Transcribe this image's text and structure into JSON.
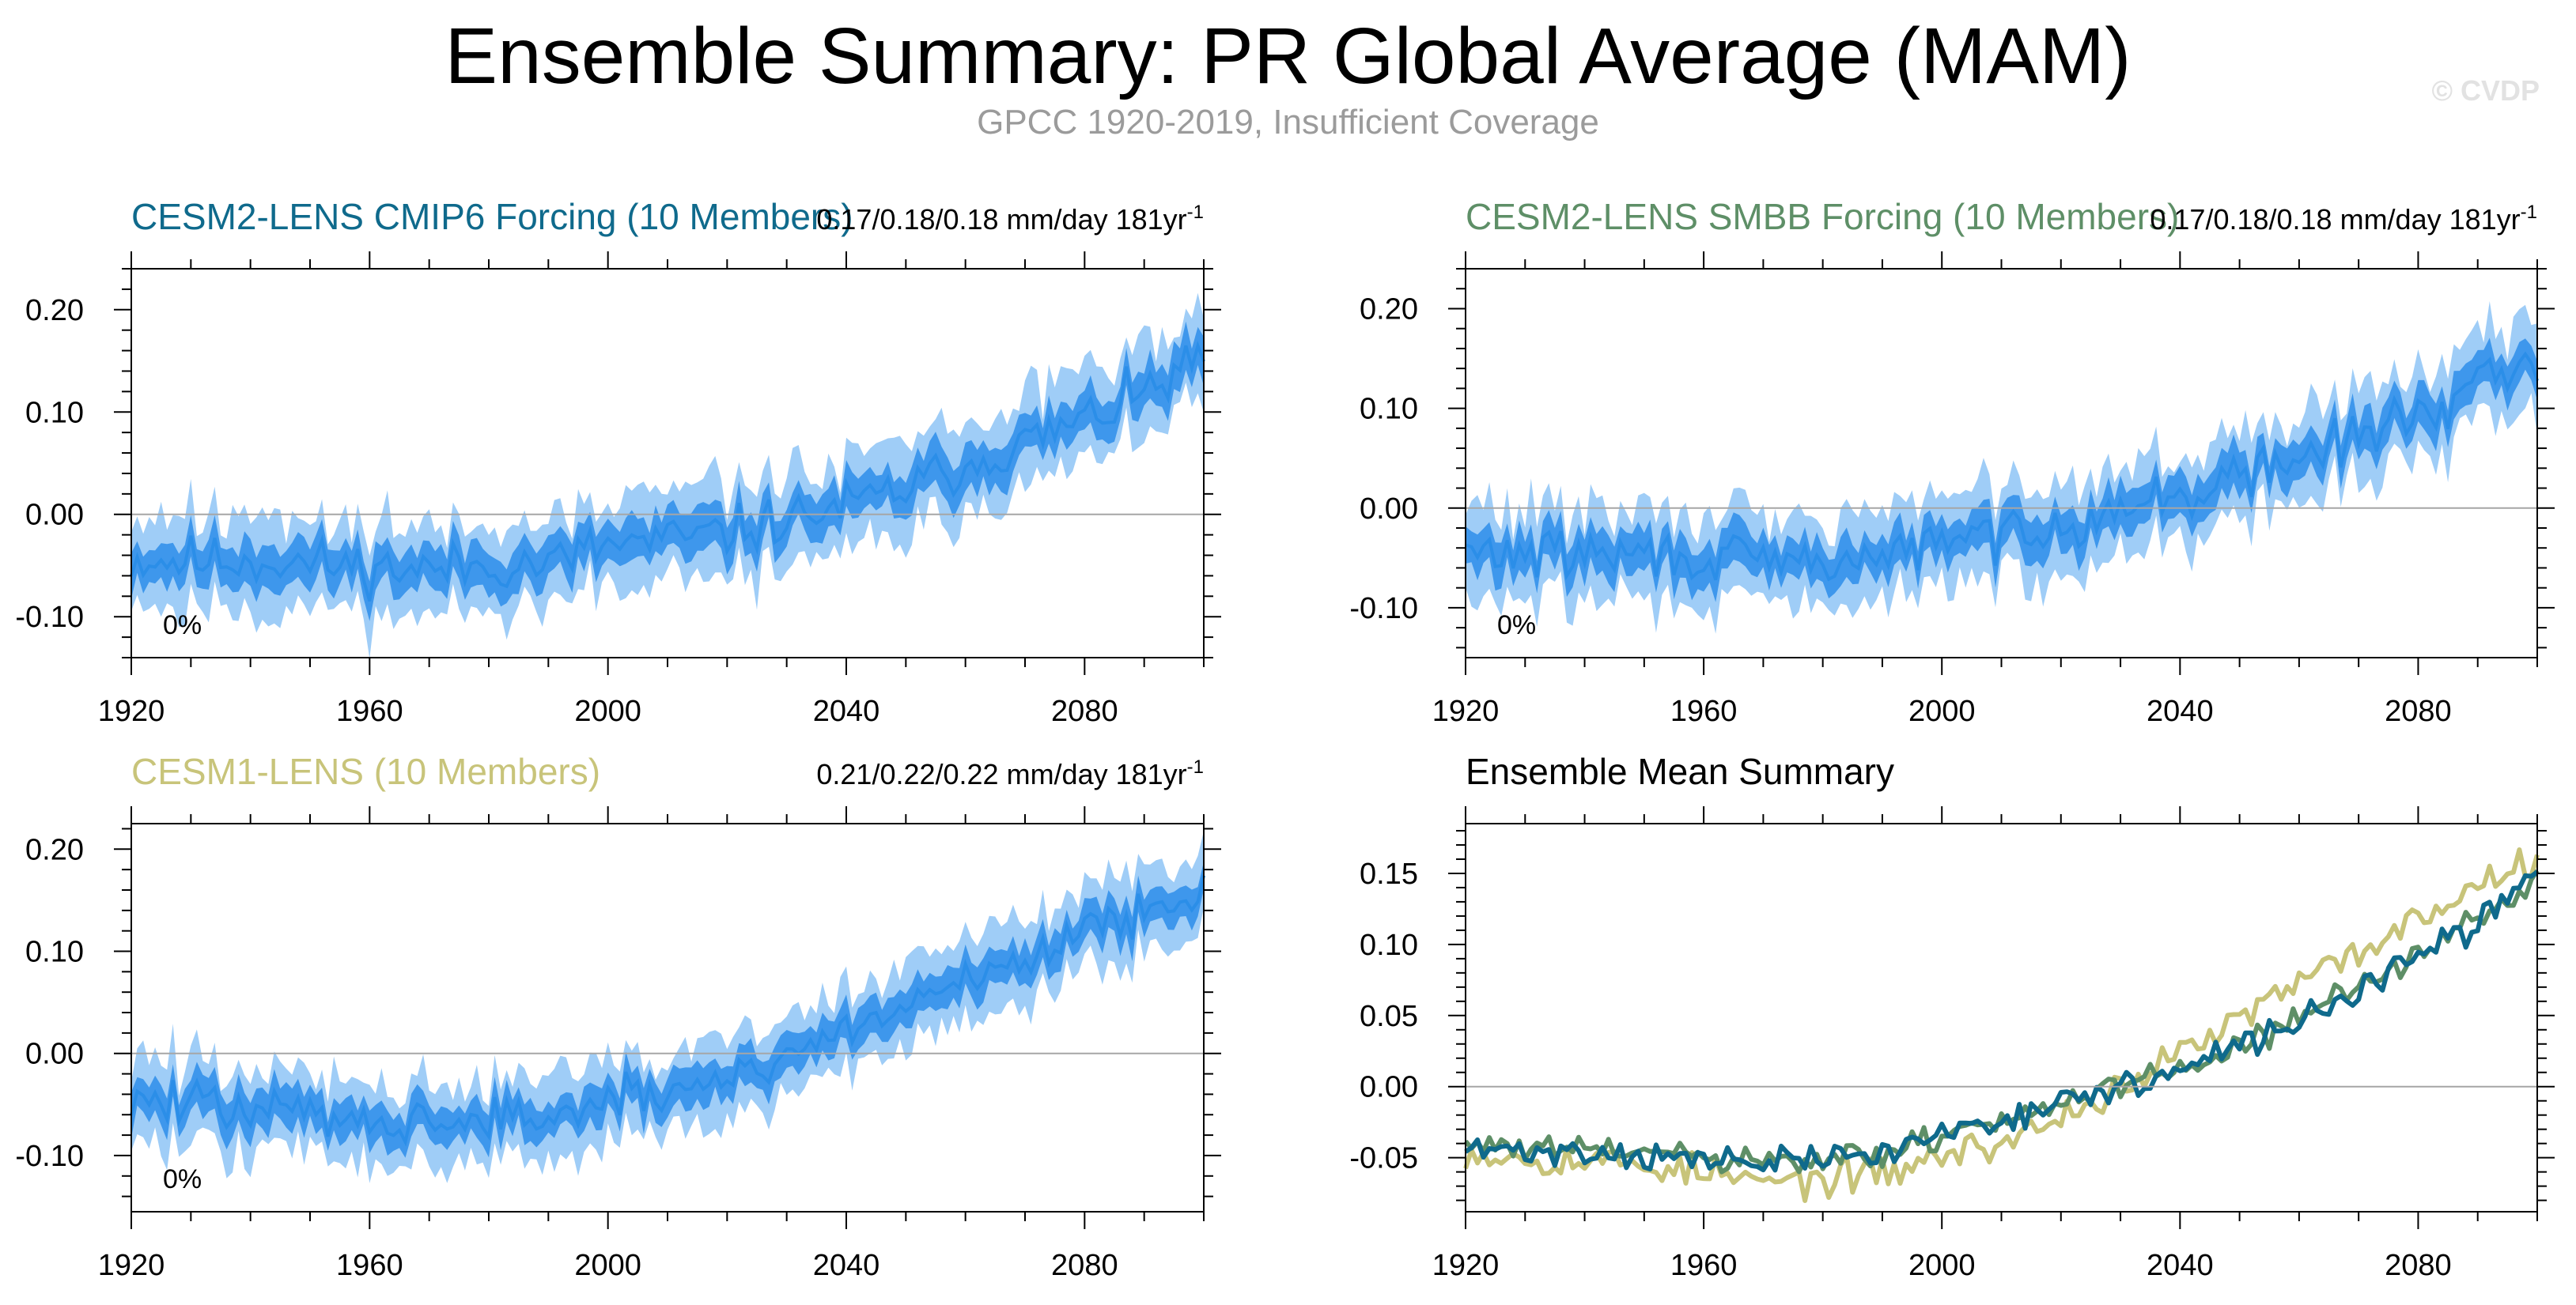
{
  "title": "Ensemble Summary: PR Global Average (MAM)",
  "subtitle": "GPCC 1920-2019, Insufficient Coverage",
  "watermark": "© CVDP",
  "colors": {
    "ensemble_line": "#2b8ee8",
    "ensemble_band_inner": "#3e97ec",
    "ensemble_band_outer": "#9fcdf7",
    "cesm2_cmip6": "#0f6a8c",
    "cesm2_smbb": "#5e8f67",
    "cesm1": "#c8c47a",
    "axis": "#000000",
    "zero_line": "#a6a6a6"
  },
  "chart_data": [
    {
      "id": "cmip6",
      "type": "area",
      "title": "CESM2-LENS CMIP6 Forcing (10 Members)",
      "title_color": "#0f6a8c",
      "stats": "0.17/0.18/0.18 mm/day 181yr",
      "stats_sup": "-1",
      "percent_label": "0%",
      "xlim": [
        1920,
        2100
      ],
      "ylim": [
        -0.14,
        0.24
      ],
      "xticks": [
        1920,
        1960,
        2000,
        2040,
        2080
      ],
      "yticks": [
        -0.1,
        0.0,
        0.1,
        0.2
      ],
      "ytick_labels": [
        "-0.10",
        "0.00",
        "0.10",
        "0.20"
      ],
      "anchors_x": [
        1920,
        1930,
        1940,
        1950,
        1960,
        1970,
        1980,
        1990,
        2000,
        2010,
        2020,
        2030,
        2040,
        2050,
        2060,
        2070,
        2080,
        2090,
        2100
      ],
      "anchors_y": [
        -0.045,
        -0.045,
        -0.045,
        -0.048,
        -0.052,
        -0.054,
        -0.05,
        -0.048,
        -0.03,
        -0.025,
        -0.018,
        -0.005,
        0.008,
        0.025,
        0.048,
        0.07,
        0.092,
        0.118,
        0.152
      ],
      "noise": 0.012,
      "band_inner": 0.02,
      "band_outer": 0.042,
      "seed": 11
    },
    {
      "id": "smbb",
      "type": "area",
      "title": "CESM2-LENS SMBB Forcing (10 Members)",
      "title_color": "#5e8f67",
      "stats": "0.17/0.18/0.18 mm/day 181yr",
      "stats_sup": "-1",
      "percent_label": "0%",
      "xlim": [
        1920,
        2100
      ],
      "ylim": [
        -0.15,
        0.24
      ],
      "xticks": [
        1920,
        1960,
        2000,
        2040,
        2080
      ],
      "yticks": [
        -0.1,
        0.0,
        0.1,
        0.2
      ],
      "ytick_labels": [
        "-0.10",
        "0.00",
        "0.10",
        "0.20"
      ],
      "anchors_x": [
        1920,
        1930,
        1940,
        1950,
        1960,
        1970,
        1980,
        1990,
        2000,
        2010,
        2020,
        2030,
        2040,
        2050,
        2060,
        2070,
        2080,
        2090,
        2100
      ],
      "anchors_y": [
        -0.045,
        -0.045,
        -0.046,
        -0.047,
        -0.05,
        -0.055,
        -0.055,
        -0.048,
        -0.035,
        -0.025,
        -0.015,
        -0.002,
        0.012,
        0.03,
        0.05,
        0.072,
        0.095,
        0.12,
        0.148
      ],
      "noise": 0.012,
      "band_inner": 0.02,
      "band_outer": 0.042,
      "seed": 29
    },
    {
      "id": "cesm1",
      "type": "area",
      "title": "CESM1-LENS (10 Members)",
      "title_color": "#c8c47a",
      "stats": "0.21/0.22/0.22 mm/day 181yr",
      "stats_sup": "-1",
      "percent_label": "0%",
      "xlim": [
        1920,
        2100
      ],
      "ylim": [
        -0.155,
        0.225
      ],
      "xticks": [
        1920,
        1960,
        2000,
        2040,
        2080
      ],
      "yticks": [
        -0.1,
        0.0,
        0.1,
        0.2
      ],
      "ytick_labels": [
        "-0.10",
        "0.00",
        "0.10",
        "0.20"
      ],
      "anchors_x": [
        1920,
        1930,
        1940,
        1950,
        1960,
        1970,
        1980,
        1990,
        2000,
        2010,
        2020,
        2030,
        2040,
        2050,
        2060,
        2070,
        2080,
        2090,
        2100
      ],
      "anchors_y": [
        -0.045,
        -0.05,
        -0.055,
        -0.058,
        -0.062,
        -0.068,
        -0.065,
        -0.062,
        -0.048,
        -0.04,
        -0.022,
        0.0,
        0.022,
        0.048,
        0.072,
        0.095,
        0.118,
        0.142,
        0.165
      ],
      "noise": 0.011,
      "band_inner": 0.018,
      "band_outer": 0.038,
      "seed": 47
    },
    {
      "id": "summary",
      "type": "line",
      "title": "Ensemble Mean Summary",
      "title_color": "#000000",
      "xlim": [
        1920,
        2100
      ],
      "ylim": [
        -0.088,
        0.185
      ],
      "xticks": [
        1920,
        1960,
        2000,
        2040,
        2080
      ],
      "yticks": [
        -0.05,
        0.0,
        0.05,
        0.1,
        0.15
      ],
      "ytick_labels": [
        "-0.05",
        "0.00",
        "0.05",
        "0.10",
        "0.15"
      ],
      "series": [
        {
          "name": "CESM1-LENS",
          "color": "#c8c47a",
          "anchors_x": [
            1920,
            1930,
            1940,
            1950,
            1960,
            1970,
            1980,
            1990,
            2000,
            2010,
            2020,
            2030,
            2040,
            2050,
            2060,
            2070,
            2080,
            2090,
            2100
          ],
          "anchors_y": [
            -0.045,
            -0.05,
            -0.052,
            -0.055,
            -0.06,
            -0.068,
            -0.065,
            -0.062,
            -0.048,
            -0.04,
            -0.022,
            0.0,
            0.022,
            0.048,
            0.072,
            0.095,
            0.118,
            0.142,
            0.165
          ],
          "noise": 0.006,
          "seed": 53
        },
        {
          "name": "CESM2-LENS SMBB Forcing",
          "color": "#5e8f67",
          "anchors_x": [
            1920,
            1930,
            1940,
            1950,
            1960,
            1970,
            1980,
            1990,
            2000,
            2010,
            2020,
            2030,
            2040,
            2050,
            2060,
            2070,
            2080,
            2090,
            2100
          ],
          "anchors_y": [
            -0.04,
            -0.044,
            -0.045,
            -0.046,
            -0.05,
            -0.055,
            -0.052,
            -0.048,
            -0.035,
            -0.022,
            -0.012,
            -0.002,
            0.012,
            0.03,
            0.048,
            0.07,
            0.092,
            0.118,
            0.148
          ],
          "noise": 0.005,
          "seed": 61
        },
        {
          "name": "CESM2-LENS CMIP6 Forcing",
          "color": "#0f6a8c",
          "anchors_x": [
            1920,
            1930,
            1940,
            1950,
            1960,
            1970,
            1980,
            1990,
            2000,
            2010,
            2020,
            2030,
            2040,
            2050,
            2060,
            2070,
            2080,
            2090,
            2100
          ],
          "anchors_y": [
            -0.045,
            -0.045,
            -0.046,
            -0.048,
            -0.052,
            -0.054,
            -0.05,
            -0.048,
            -0.032,
            -0.022,
            -0.012,
            0.0,
            0.01,
            0.028,
            0.046,
            0.068,
            0.09,
            0.115,
            0.15
          ],
          "noise": 0.005,
          "seed": 71
        }
      ]
    }
  ]
}
